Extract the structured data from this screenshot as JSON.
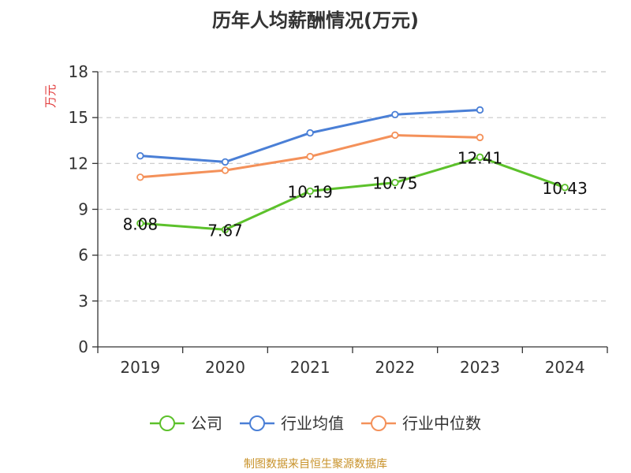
{
  "title": "历年人均薪酬情况(万元)",
  "footer": "制图数据来自恒生聚源数据库",
  "chart_data": {
    "type": "line",
    "title": "历年人均薪酬情况(万元)",
    "ylabel": "万元",
    "xlabel": "",
    "categories": [
      "2019",
      "2020",
      "2021",
      "2022",
      "2023",
      "2024"
    ],
    "ylim": [
      0,
      18
    ],
    "yticks": [
      0,
      3,
      6,
      9,
      12,
      15,
      18
    ],
    "grid": true,
    "legend_position": "bottom",
    "series": [
      {
        "name": "公司",
        "color": "#5cc12b",
        "values": [
          8.08,
          7.67,
          10.19,
          10.75,
          12.41,
          10.43
        ],
        "labels": [
          "8.08",
          "7.67",
          "10.19",
          "10.75",
          "12.41",
          "10.43"
        ]
      },
      {
        "name": "行业均值",
        "color": "#4a7fd6",
        "values": [
          12.5,
          12.1,
          14.0,
          15.2,
          15.5,
          null
        ]
      },
      {
        "name": "行业中位数",
        "color": "#f4915a",
        "values": [
          11.1,
          11.55,
          12.45,
          13.85,
          13.7,
          null
        ]
      }
    ]
  }
}
